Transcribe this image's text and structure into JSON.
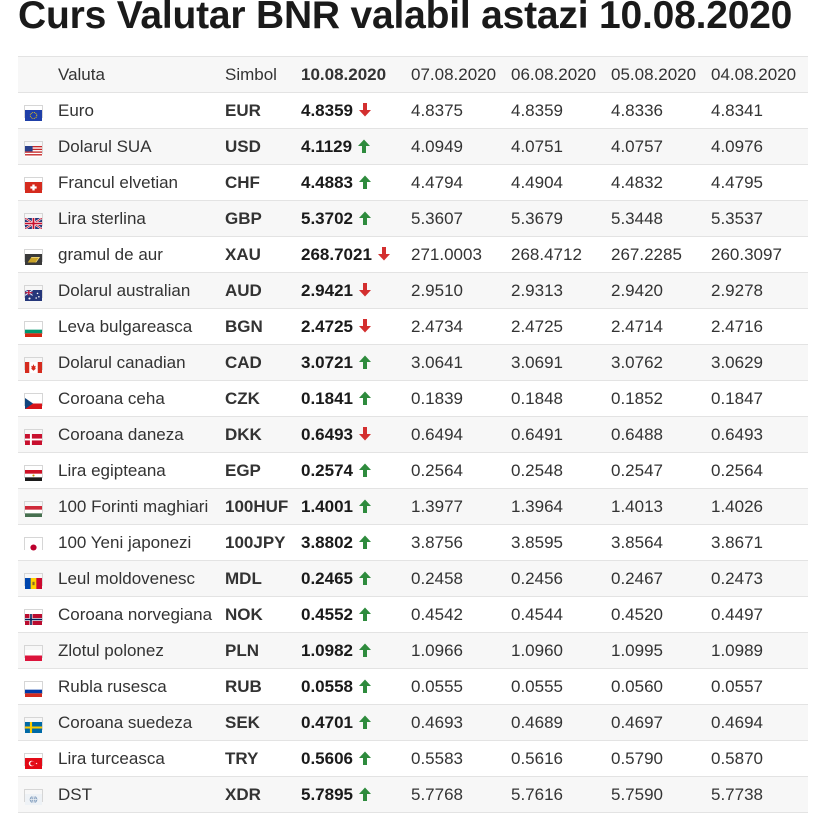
{
  "title": "Curs Valutar BNR valabil astazi 10.08.2020",
  "headers": {
    "valuta": "Valuta",
    "simbol": "Simbol",
    "today": "10.08.2020",
    "d1": "07.08.2020",
    "d2": "06.08.2020",
    "d3": "05.08.2020",
    "d4": "04.08.2020"
  },
  "trend_colors": {
    "up": "#2e8b3d",
    "down": "#d32f2f"
  },
  "rows": [
    {
      "name": "Euro",
      "symbol": "EUR",
      "today": "4.8359",
      "trend": "down",
      "d1": "4.8375",
      "d2": "4.8359",
      "d3": "4.8336",
      "d4": "4.8341",
      "flag": "eu-flag-icon"
    },
    {
      "name": "Dolarul SUA",
      "symbol": "USD",
      "today": "4.1129",
      "trend": "up",
      "d1": "4.0949",
      "d2": "4.0751",
      "d3": "4.0757",
      "d4": "4.0976",
      "flag": "us-flag-icon"
    },
    {
      "name": "Francul elvetian",
      "symbol": "CHF",
      "today": "4.4883",
      "trend": "up",
      "d1": "4.4794",
      "d2": "4.4904",
      "d3": "4.4832",
      "d4": "4.4795",
      "flag": "ch-flag-icon"
    },
    {
      "name": "Lira sterlina",
      "symbol": "GBP",
      "today": "5.3702",
      "trend": "up",
      "d1": "5.3607",
      "d2": "5.3679",
      "d3": "5.3448",
      "d4": "5.3537",
      "flag": "gb-flag-icon"
    },
    {
      "name": "gramul de aur",
      "symbol": "XAU",
      "today": "268.7021",
      "trend": "down",
      "d1": "271.0003",
      "d2": "268.4712",
      "d3": "267.2285",
      "d4": "260.3097",
      "flag": "gold-icon"
    },
    {
      "name": "Dolarul australian",
      "symbol": "AUD",
      "today": "2.9421",
      "trend": "down",
      "d1": "2.9510",
      "d2": "2.9313",
      "d3": "2.9420",
      "d4": "2.9278",
      "flag": "au-flag-icon"
    },
    {
      "name": "Leva bulgareasca",
      "symbol": "BGN",
      "today": "2.4725",
      "trend": "down",
      "d1": "2.4734",
      "d2": "2.4725",
      "d3": "2.4714",
      "d4": "2.4716",
      "flag": "bg-flag-icon"
    },
    {
      "name": "Dolarul canadian",
      "symbol": "CAD",
      "today": "3.0721",
      "trend": "up",
      "d1": "3.0641",
      "d2": "3.0691",
      "d3": "3.0762",
      "d4": "3.0629",
      "flag": "ca-flag-icon"
    },
    {
      "name": "Coroana ceha",
      "symbol": "CZK",
      "today": "0.1841",
      "trend": "up",
      "d1": "0.1839",
      "d2": "0.1848",
      "d3": "0.1852",
      "d4": "0.1847",
      "flag": "cz-flag-icon"
    },
    {
      "name": "Coroana daneza",
      "symbol": "DKK",
      "today": "0.6493",
      "trend": "down",
      "d1": "0.6494",
      "d2": "0.6491",
      "d3": "0.6488",
      "d4": "0.6493",
      "flag": "dk-flag-icon"
    },
    {
      "name": "Lira egipteana",
      "symbol": "EGP",
      "today": "0.2574",
      "trend": "up",
      "d1": "0.2564",
      "d2": "0.2548",
      "d3": "0.2547",
      "d4": "0.2564",
      "flag": "eg-flag-icon"
    },
    {
      "name": "100 Forinti maghiari",
      "symbol": "100HUF",
      "today": "1.4001",
      "trend": "up",
      "d1": "1.3977",
      "d2": "1.3964",
      "d3": "1.4013",
      "d4": "1.4026",
      "flag": "hu-flag-icon"
    },
    {
      "name": "100 Yeni japonezi",
      "symbol": "100JPY",
      "today": "3.8802",
      "trend": "up",
      "d1": "3.8756",
      "d2": "3.8595",
      "d3": "3.8564",
      "d4": "3.8671",
      "flag": "jp-flag-icon"
    },
    {
      "name": "Leul moldovenesc",
      "symbol": "MDL",
      "today": "0.2465",
      "trend": "up",
      "d1": "0.2458",
      "d2": "0.2456",
      "d3": "0.2467",
      "d4": "0.2473",
      "flag": "md-flag-icon"
    },
    {
      "name": "Coroana norvegiana",
      "symbol": "NOK",
      "today": "0.4552",
      "trend": "up",
      "d1": "0.4542",
      "d2": "0.4544",
      "d3": "0.4520",
      "d4": "0.4497",
      "flag": "no-flag-icon"
    },
    {
      "name": "Zlotul polonez",
      "symbol": "PLN",
      "today": "1.0982",
      "trend": "up",
      "d1": "1.0966",
      "d2": "1.0960",
      "d3": "1.0995",
      "d4": "1.0989",
      "flag": "pl-flag-icon"
    },
    {
      "name": "Rubla rusesca",
      "symbol": "RUB",
      "today": "0.0558",
      "trend": "up",
      "d1": "0.0555",
      "d2": "0.0555",
      "d3": "0.0560",
      "d4": "0.0557",
      "flag": "ru-flag-icon"
    },
    {
      "name": "Coroana suedeza",
      "symbol": "SEK",
      "today": "0.4701",
      "trend": "up",
      "d1": "0.4693",
      "d2": "0.4689",
      "d3": "0.4697",
      "d4": "0.4694",
      "flag": "se-flag-icon"
    },
    {
      "name": "Lira turceasca",
      "symbol": "TRY",
      "today": "0.5606",
      "trend": "up",
      "d1": "0.5583",
      "d2": "0.5616",
      "d3": "0.5790",
      "d4": "0.5870",
      "flag": "tr-flag-icon"
    },
    {
      "name": "DST",
      "symbol": "XDR",
      "today": "5.7895",
      "trend": "up",
      "d1": "5.7768",
      "d2": "5.7616",
      "d3": "5.7590",
      "d4": "5.7738",
      "flag": "imf-icon"
    }
  ]
}
